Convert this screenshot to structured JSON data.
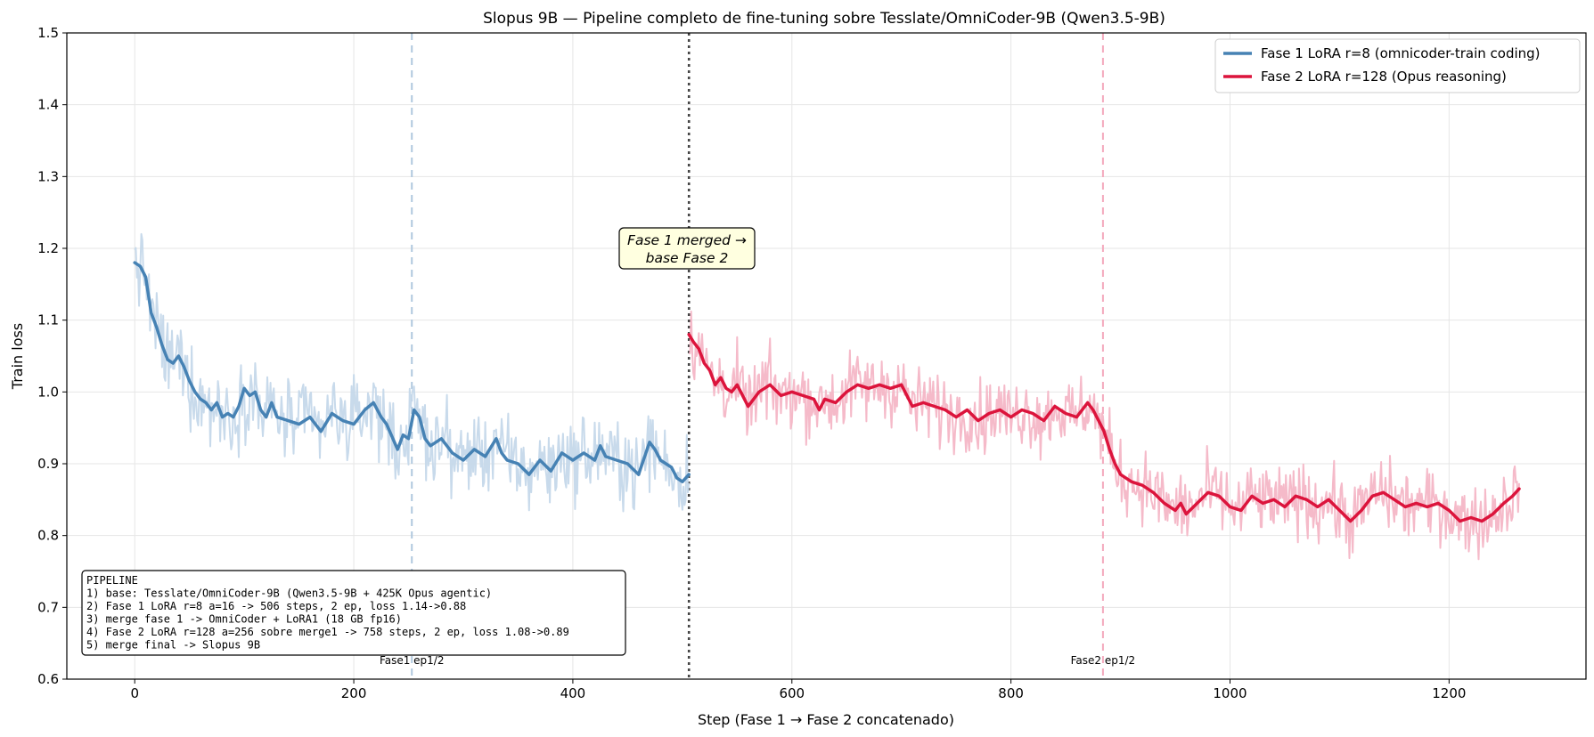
{
  "chart_data": {
    "type": "line",
    "title": "Slopus 9B — Pipeline completo de fine-tuning sobre Tesslate/OmniCoder-9B (Qwen3.5-9B)",
    "xlabel": "Step (Fase 1 → Fase 2 concatenado)",
    "ylabel": "Train loss",
    "xlim": [
      -62,
      1325
    ],
    "ylim": [
      0.6,
      1.5
    ],
    "xticks": [
      0,
      200,
      400,
      600,
      800,
      1000,
      1200
    ],
    "yticks": [
      0.6,
      0.7,
      0.8,
      0.9,
      1.0,
      1.1,
      1.2,
      1.3,
      1.4,
      1.5
    ],
    "grid": true,
    "legend_position": "top-right",
    "series": [
      {
        "name": "Fase 1 LoRA r=8 (omnicoder-train coding)",
        "color": "#4682b4",
        "raw_color": "#c5d8ea",
        "x_start": 0,
        "x_end": 506,
        "smoothed": [
          [
            0,
            1.18
          ],
          [
            5,
            1.175
          ],
          [
            10,
            1.16
          ],
          [
            15,
            1.11
          ],
          [
            20,
            1.09
          ],
          [
            25,
            1.065
          ],
          [
            30,
            1.045
          ],
          [
            35,
            1.04
          ],
          [
            40,
            1.05
          ],
          [
            45,
            1.035
          ],
          [
            50,
            1.015
          ],
          [
            55,
            1.0
          ],
          [
            60,
            0.99
          ],
          [
            65,
            0.985
          ],
          [
            70,
            0.975
          ],
          [
            75,
            0.985
          ],
          [
            80,
            0.965
          ],
          [
            85,
            0.97
          ],
          [
            90,
            0.965
          ],
          [
            95,
            0.98
          ],
          [
            100,
            1.005
          ],
          [
            105,
            0.995
          ],
          [
            110,
            1.0
          ],
          [
            115,
            0.975
          ],
          [
            120,
            0.965
          ],
          [
            125,
            0.985
          ],
          [
            130,
            0.965
          ],
          [
            140,
            0.96
          ],
          [
            150,
            0.955
          ],
          [
            160,
            0.965
          ],
          [
            170,
            0.945
          ],
          [
            180,
            0.97
          ],
          [
            190,
            0.96
          ],
          [
            200,
            0.955
          ],
          [
            210,
            0.975
          ],
          [
            218,
            0.985
          ],
          [
            225,
            0.965
          ],
          [
            230,
            0.955
          ],
          [
            240,
            0.92
          ],
          [
            245,
            0.94
          ],
          [
            250,
            0.935
          ],
          [
            255,
            0.975
          ],
          [
            260,
            0.965
          ],
          [
            265,
            0.935
          ],
          [
            270,
            0.925
          ],
          [
            280,
            0.935
          ],
          [
            290,
            0.915
          ],
          [
            300,
            0.905
          ],
          [
            310,
            0.92
          ],
          [
            320,
            0.91
          ],
          [
            330,
            0.935
          ],
          [
            335,
            0.915
          ],
          [
            340,
            0.905
          ],
          [
            350,
            0.9
          ],
          [
            360,
            0.885
          ],
          [
            370,
            0.905
          ],
          [
            380,
            0.89
          ],
          [
            390,
            0.915
          ],
          [
            400,
            0.905
          ],
          [
            410,
            0.915
          ],
          [
            420,
            0.905
          ],
          [
            425,
            0.925
          ],
          [
            430,
            0.91
          ],
          [
            440,
            0.905
          ],
          [
            450,
            0.9
          ],
          [
            460,
            0.885
          ],
          [
            470,
            0.93
          ],
          [
            475,
            0.92
          ],
          [
            480,
            0.905
          ],
          [
            490,
            0.895
          ],
          [
            495,
            0.88
          ],
          [
            500,
            0.875
          ],
          [
            506,
            0.885
          ]
        ]
      },
      {
        "name": "Fase 2 LoRA r=128 (Opus reasoning)",
        "color": "#dc143c",
        "raw_color": "#f4b6c6",
        "x_start": 506,
        "x_end": 1264,
        "smoothed": [
          [
            506,
            1.08
          ],
          [
            510,
            1.07
          ],
          [
            515,
            1.06
          ],
          [
            520,
            1.04
          ],
          [
            525,
            1.03
          ],
          [
            530,
            1.01
          ],
          [
            535,
            1.02
          ],
          [
            540,
            1.005
          ],
          [
            545,
            1.0
          ],
          [
            550,
            1.01
          ],
          [
            555,
            0.995
          ],
          [
            560,
            0.98
          ],
          [
            565,
            0.99
          ],
          [
            570,
            1.0
          ],
          [
            580,
            1.01
          ],
          [
            590,
            0.995
          ],
          [
            600,
            1.0
          ],
          [
            610,
            0.995
          ],
          [
            620,
            0.99
          ],
          [
            625,
            0.975
          ],
          [
            630,
            0.99
          ],
          [
            640,
            0.985
          ],
          [
            650,
            1.0
          ],
          [
            660,
            1.01
          ],
          [
            670,
            1.005
          ],
          [
            680,
            1.01
          ],
          [
            690,
            1.005
          ],
          [
            700,
            1.01
          ],
          [
            710,
            0.98
          ],
          [
            720,
            0.985
          ],
          [
            730,
            0.98
          ],
          [
            740,
            0.975
          ],
          [
            750,
            0.965
          ],
          [
            760,
            0.975
          ],
          [
            770,
            0.96
          ],
          [
            780,
            0.97
          ],
          [
            790,
            0.975
          ],
          [
            800,
            0.965
          ],
          [
            810,
            0.975
          ],
          [
            820,
            0.97
          ],
          [
            830,
            0.96
          ],
          [
            840,
            0.98
          ],
          [
            850,
            0.97
          ],
          [
            860,
            0.965
          ],
          [
            870,
            0.985
          ],
          [
            875,
            0.975
          ],
          [
            880,
            0.96
          ],
          [
            885,
            0.945
          ],
          [
            890,
            0.92
          ],
          [
            895,
            0.9
          ],
          [
            900,
            0.885
          ],
          [
            910,
            0.875
          ],
          [
            920,
            0.87
          ],
          [
            930,
            0.86
          ],
          [
            940,
            0.845
          ],
          [
            950,
            0.835
          ],
          [
            955,
            0.845
          ],
          [
            960,
            0.83
          ],
          [
            970,
            0.845
          ],
          [
            980,
            0.86
          ],
          [
            990,
            0.855
          ],
          [
            1000,
            0.84
          ],
          [
            1010,
            0.835
          ],
          [
            1020,
            0.855
          ],
          [
            1030,
            0.845
          ],
          [
            1040,
            0.85
          ],
          [
            1050,
            0.84
          ],
          [
            1060,
            0.855
          ],
          [
            1070,
            0.85
          ],
          [
            1080,
            0.84
          ],
          [
            1090,
            0.85
          ],
          [
            1100,
            0.835
          ],
          [
            1110,
            0.82
          ],
          [
            1120,
            0.835
          ],
          [
            1130,
            0.855
          ],
          [
            1140,
            0.86
          ],
          [
            1150,
            0.85
          ],
          [
            1160,
            0.84
          ],
          [
            1170,
            0.845
          ],
          [
            1180,
            0.84
          ],
          [
            1190,
            0.845
          ],
          [
            1200,
            0.835
          ],
          [
            1210,
            0.82
          ],
          [
            1220,
            0.825
          ],
          [
            1230,
            0.82
          ],
          [
            1240,
            0.83
          ],
          [
            1250,
            0.845
          ],
          [
            1258,
            0.855
          ],
          [
            1264,
            0.865
          ]
        ]
      }
    ],
    "vlines": [
      {
        "x": 253,
        "style": "dashed",
        "color": "#b0c8de",
        "label": "Fase1 ep1/2",
        "label_color": "#4682b4"
      },
      {
        "x": 506,
        "style": "dotted",
        "color": "#444444",
        "label": ""
      },
      {
        "x": 884,
        "style": "dashed",
        "color": "#f4a9bd",
        "label": "Fase2 ep1/2",
        "label_color": "#dc143c"
      }
    ],
    "annotation": {
      "lines": [
        "Fase 1 merged →",
        "base Fase 2"
      ],
      "x": 506,
      "y": 1.195
    },
    "pipeline_box": {
      "lines": [
        "PIPELINE",
        "1) base: Tesslate/OmniCoder-9B (Qwen3.5-9B + 425K Opus agentic)",
        "2) Fase 1 LoRA r=8 a=16 -> 506 steps, 2 ep, loss 1.14->0.88",
        "3) merge fase 1 -> OmniCoder + LoRA1 (18 GB fp16)",
        "4) Fase 2 LoRA r=128 a=256 sobre merge1 -> 758 steps, 2 ep, loss 1.08->0.89",
        "5) merge final -> Slopus 9B"
      ]
    }
  }
}
